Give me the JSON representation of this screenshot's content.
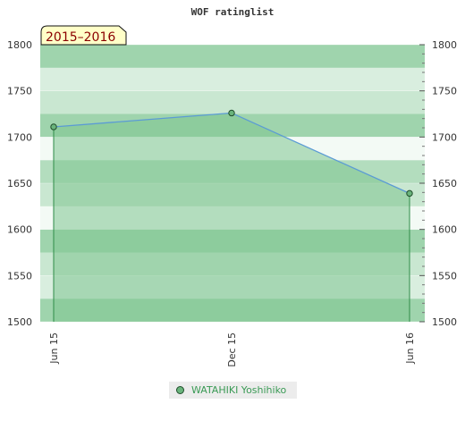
{
  "chart_data": {
    "type": "area",
    "title": "WOF ratinglist",
    "period_badge": "2015–2016",
    "x_ticks": [
      "Jun 15",
      "Dec 15",
      "Jun 16"
    ],
    "x": [
      "2015-06",
      "2015-12",
      "2016-06"
    ],
    "series": [
      {
        "name": "WATAHIKI Yoshihiko",
        "values": [
          1711,
          1726,
          1639
        ]
      }
    ],
    "ylim": [
      1500,
      1800
    ],
    "y_ticks": [
      1500,
      1550,
      1600,
      1650,
      1700,
      1750,
      1800
    ],
    "axes": "left and right",
    "legend_position": "bottom",
    "colors": {
      "line": "#5b9bd5",
      "area_fill": "#7dc48f",
      "marker": "#6ab47c",
      "marker_stroke": "#1f4d2b",
      "badge_bg": "#ffffc8",
      "badge_text": "#8b0000"
    }
  }
}
